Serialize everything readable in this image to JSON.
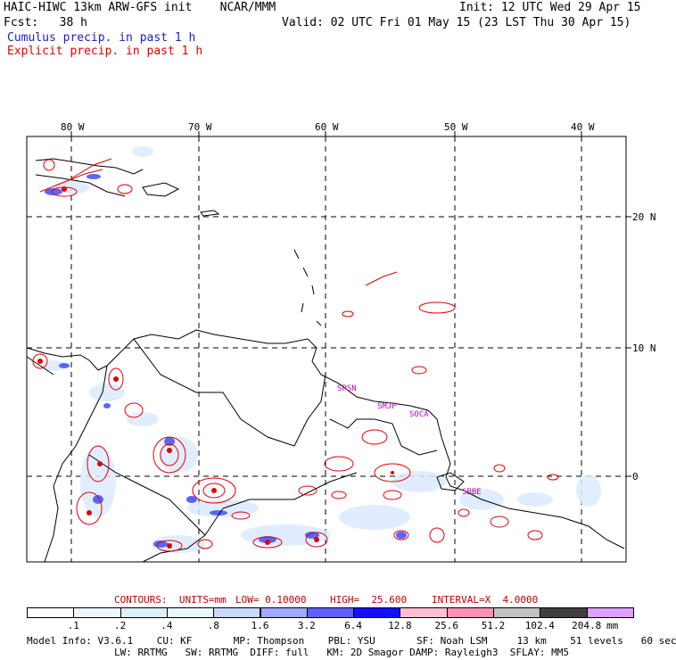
{
  "header": {
    "line1_left": "HAIC-HIWC 13km ARW-GFS init    NCAR/MMM",
    "line1_right": "Init: 12 UTC Wed 29 Apr 15",
    "line2_left": "Fcst:   38 h",
    "line2_right": "Valid: 02 UTC Fri 01 May 15 (23 LST Thu 30 Apr 15)",
    "legend_cumulus": "Cumulus precip. in past 1 h",
    "legend_explicit": "Explicit precip. in past 1 h",
    "colors": {
      "cumulus": "#2020c0",
      "explicit": "#e00000"
    }
  },
  "map": {
    "lon_labels": [
      "80 W",
      "70 W",
      "60 W",
      "50 W",
      "40 W"
    ],
    "lat_labels": [
      "20 N",
      "10 N",
      "0"
    ],
    "sites": [
      "SPSN",
      "SMJP",
      "SOCA",
      "SBBE"
    ],
    "site_color": "#c000c0"
  },
  "contours": {
    "units_label": "CONTOURS:  UNITS=mm",
    "low_label": "LOW= 0.10000",
    "high_label": "HIGH=  25.600",
    "interval_label": "INTERVAL=X  4.0000",
    "color": "#c00000"
  },
  "colorbar": {
    "labels": [
      ".1",
      ".2",
      ".4",
      ".8",
      "1.6",
      "3.2",
      "6.4",
      "12.8",
      "25.6",
      "51.2",
      "102.4",
      "204.8"
    ],
    "unit": "mm",
    "colors": [
      "#ffffff",
      "#eef6ff",
      "#dcf0fa",
      "#e8f8ff",
      "#c8d8ff",
      "#a0a8ff",
      "#6060ff",
      "#1010ff",
      "#ffc0d0",
      "#ff90b8",
      "#c0c0c0",
      "#404040",
      "#e0a0ff"
    ]
  },
  "footer": {
    "line1": "Model Info: V3.6.1    CU: KF       MP: Thompson    PBL: YSU       SF: Noah LSM     13 km    51 levels   60 sec",
    "line2": "LW: RRTMG   SW: RRTMG  DIFF: full   KM: 2D Smagor DAMP: Rayleigh3  SFLAY: MM5"
  }
}
